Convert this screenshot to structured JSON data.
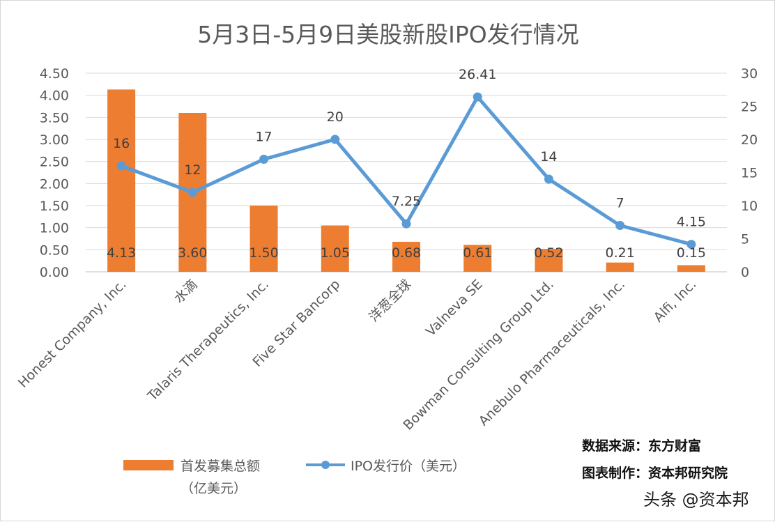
{
  "chart_data": {
    "type": "bar+line",
    "title": "5月3日-5月9日美股新股IPO发行情况",
    "categories": [
      "Honest Company, Inc.",
      "水滴",
      "Talaris Therapeutics, Inc.",
      "Five Star Bancorp",
      "洋葱全球",
      "Valneva SE",
      "Bowman Consulting Group Ltd.",
      "Anebulo Pharmaceuticals, Inc.",
      "Alfi, Inc."
    ],
    "series": [
      {
        "name": "首发募集总额（亿美元）",
        "legend_lines": [
          "首发募集总额",
          "（亿美元）"
        ],
        "type": "bar",
        "axis": "left",
        "color": "#ED7D31",
        "values": [
          4.13,
          3.6,
          1.5,
          1.05,
          0.68,
          0.61,
          0.52,
          0.21,
          0.15
        ],
        "labels": [
          "4.13",
          "3.60",
          "1.50",
          "1.05",
          "0.68",
          "0.61",
          "0.52",
          "0.21",
          "0.15"
        ]
      },
      {
        "name": "IPO发行价（美元）",
        "legend_lines": [
          "IPO发行价（美元）"
        ],
        "type": "line",
        "axis": "right",
        "color": "#5B9BD5",
        "values": [
          16,
          12,
          17,
          20,
          7.25,
          26.41,
          14,
          7,
          4.15
        ],
        "labels": [
          "16",
          "12",
          "17",
          "20",
          "7.25",
          "26.41",
          "14",
          "7",
          "4.15"
        ]
      }
    ],
    "y_left": {
      "min": 0,
      "max": 4.5,
      "ticks": [
        "0.00",
        "0.50",
        "1.00",
        "1.50",
        "2.00",
        "2.50",
        "3.00",
        "3.50",
        "4.00",
        "4.50"
      ]
    },
    "y_right": {
      "min": 0,
      "max": 30,
      "ticks": [
        "0",
        "5",
        "10",
        "15",
        "20",
        "25",
        "30"
      ]
    },
    "grid": true,
    "legend": "bottom-left"
  },
  "source_note": [
    "数据来源：东方财富",
    "图表制作：资本邦研究院"
  ],
  "watermark": "头条 @资本邦"
}
